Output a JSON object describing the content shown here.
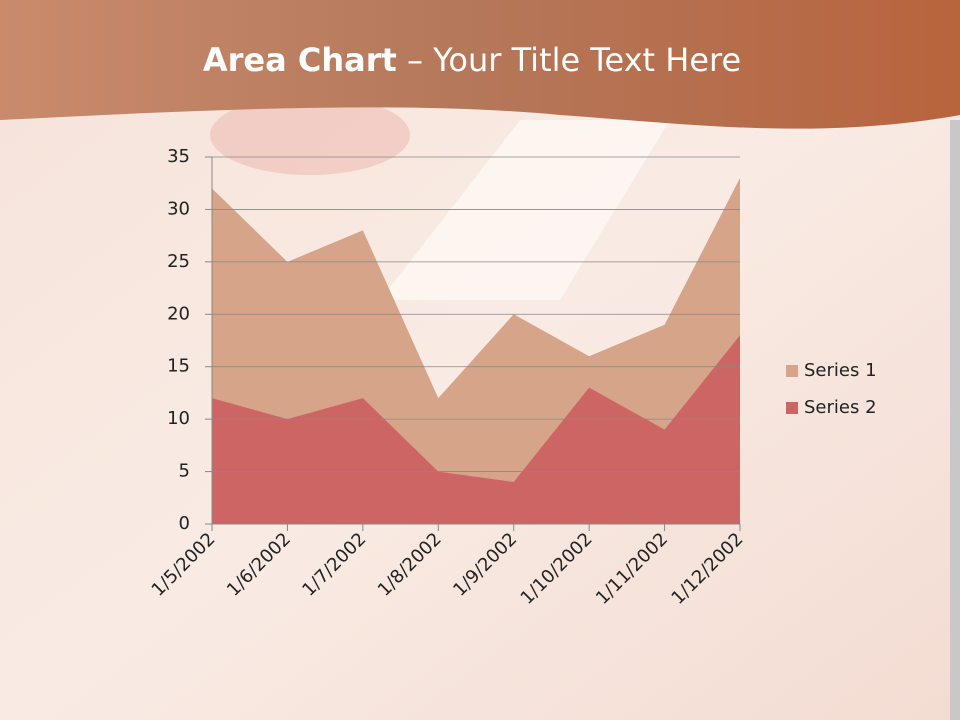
{
  "chart_data": {
    "type": "area",
    "title_bold": "Area Chart",
    "title_rest": "– Your Title Text Here",
    "x": [
      "1/5/2002",
      "1/6/2002",
      "1/7/2002",
      "1/8/2002",
      "1/9/2002",
      "1/10/2002",
      "1/11/2002",
      "1/12/2002"
    ],
    "series": [
      {
        "name": "Series 1",
        "color": "#d5a489",
        "values": [
          32,
          25,
          28,
          12,
          20,
          16,
          19,
          33
        ]
      },
      {
        "name": "Series 2",
        "color": "#cd6565",
        "values": [
          12,
          10,
          12,
          5,
          4,
          13,
          9,
          18
        ]
      }
    ],
    "ylim": [
      0,
      35
    ],
    "yticks": [
      0,
      5,
      10,
      15,
      20,
      25,
      30,
      35
    ],
    "grid": true,
    "legend": "right"
  }
}
